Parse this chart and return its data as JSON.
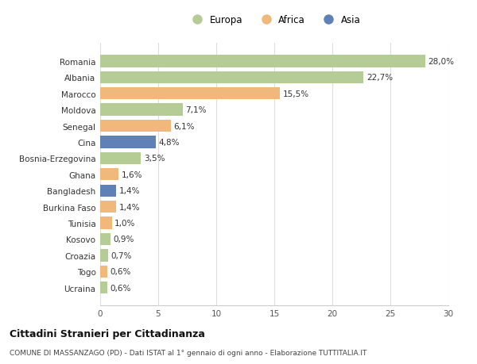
{
  "countries": [
    "Ucraina",
    "Togo",
    "Croazia",
    "Kosovo",
    "Tunisia",
    "Burkina Faso",
    "Bangladesh",
    "Ghana",
    "Bosnia-Erzegovina",
    "Cina",
    "Senegal",
    "Moldova",
    "Marocco",
    "Albania",
    "Romania"
  ],
  "values": [
    0.6,
    0.6,
    0.7,
    0.9,
    1.0,
    1.4,
    1.4,
    1.6,
    3.5,
    4.8,
    6.1,
    7.1,
    15.5,
    22.7,
    28.0
  ],
  "colors": [
    "#b5cc96",
    "#f0b87a",
    "#b5cc96",
    "#b5cc96",
    "#f0b87a",
    "#f0b87a",
    "#6080b8",
    "#f0b87a",
    "#b5cc96",
    "#6080b8",
    "#f0b87a",
    "#b5cc96",
    "#f0b87a",
    "#b5cc96",
    "#b5cc96"
  ],
  "labels": [
    "0,6%",
    "0,6%",
    "0,7%",
    "0,9%",
    "1,0%",
    "1,4%",
    "1,4%",
    "1,6%",
    "3,5%",
    "4,8%",
    "6,1%",
    "7,1%",
    "15,5%",
    "22,7%",
    "28,0%"
  ],
  "legend_labels": [
    "Europa",
    "Africa",
    "Asia"
  ],
  "legend_colors": [
    "#b5cc96",
    "#f0b87a",
    "#6080b8"
  ],
  "title": "Cittadini Stranieri per Cittadinanza",
  "subtitle": "COMUNE DI MASSANZAGO (PD) - Dati ISTAT al 1° gennaio di ogni anno - Elaborazione TUTTITALIA.IT",
  "xlim": [
    0,
    30
  ],
  "xticks": [
    0,
    5,
    10,
    15,
    20,
    25,
    30
  ],
  "bg_color": "#ffffff",
  "plot_bg_color": "#ffffff"
}
